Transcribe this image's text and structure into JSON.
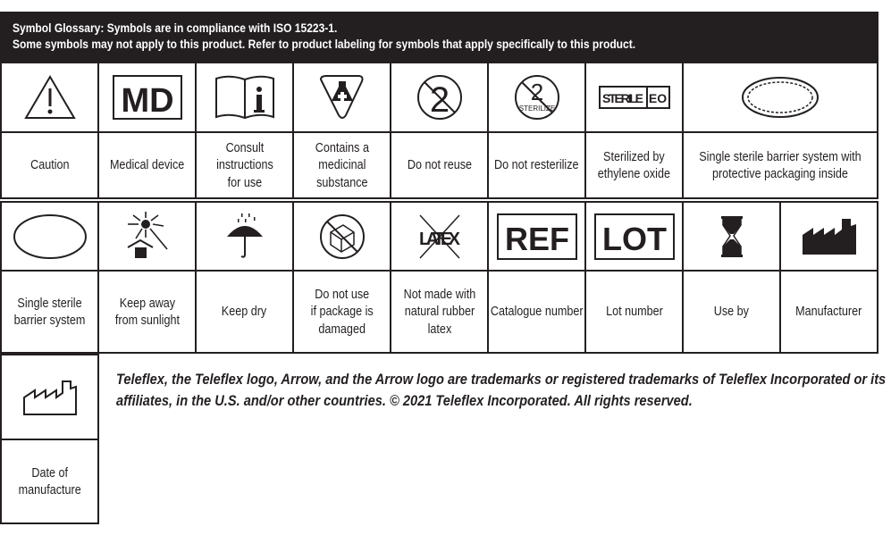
{
  "header": {
    "line1": "Symbol Glossary: Symbols are in compliance with ISO 15223-1.",
    "line2": "Some symbols may not apply to this product. Refer to product labeling for symbols that apply specifically to this product."
  },
  "row1": [
    {
      "icon": "caution-triangle-icon",
      "label": [
        "Caution"
      ]
    },
    {
      "icon": "md-icon",
      "icon_text": "MD",
      "label": [
        "Medical device"
      ]
    },
    {
      "icon": "book-info-icon",
      "label": [
        "Consult",
        "instructions",
        "for use"
      ]
    },
    {
      "icon": "flask-cross-icon",
      "label": [
        "Contains a",
        "medicinal",
        "substance"
      ]
    },
    {
      "icon": "no-reuse-icon",
      "icon_text": "2",
      "label": [
        "Do not reuse"
      ]
    },
    {
      "icon": "no-resterilize-icon",
      "icon_text": "STERILIZE",
      "label": [
        "Do not resterilize"
      ]
    },
    {
      "icon": "sterile-eo-icon",
      "icon_text": [
        "STERILE",
        "EO"
      ],
      "label": [
        "Sterilized by",
        "ethylene oxide"
      ]
    },
    {
      "icon": "dashed-double-oval-icon",
      "label": [
        "Single sterile barrier system with",
        "protective packaging inside"
      ]
    }
  ],
  "row2": [
    {
      "icon": "oval-icon",
      "label": [
        "Single sterile",
        "barrier system"
      ]
    },
    {
      "icon": "sunlight-icon",
      "label": [
        "Keep away",
        "from sunlight"
      ]
    },
    {
      "icon": "umbrella-icon",
      "label": [
        "Keep dry"
      ]
    },
    {
      "icon": "damaged-package-icon",
      "label": [
        "Do not use",
        "if package is",
        "damaged"
      ]
    },
    {
      "icon": "latex-crossed-icon",
      "icon_text": "LATEX",
      "label": [
        "Not made with",
        "natural rubber",
        "latex"
      ]
    },
    {
      "icon": "ref-icon",
      "icon_text": "REF",
      "label": [
        "Catalogue number"
      ]
    },
    {
      "icon": "lot-icon",
      "icon_text": "LOT",
      "label": [
        "Lot number"
      ]
    },
    {
      "icon": "hourglass-icon",
      "label": [
        "Use by"
      ]
    },
    {
      "icon": "factory-filled-icon",
      "label": [
        "Manufacturer"
      ]
    }
  ],
  "row3": [
    {
      "icon": "factory-outline-icon",
      "label": [
        "Date of",
        "manufacture"
      ]
    }
  ],
  "footnote": [
    "Teleflex, the Teleflex logo, Arrow, and the Arrow logo are trademarks or registered trademarks of Teleflex Incorporated or its",
    "affiliates, in the U.S. and/or other countries. © 2021 Teleflex Incorporated. All rights reserved."
  ]
}
